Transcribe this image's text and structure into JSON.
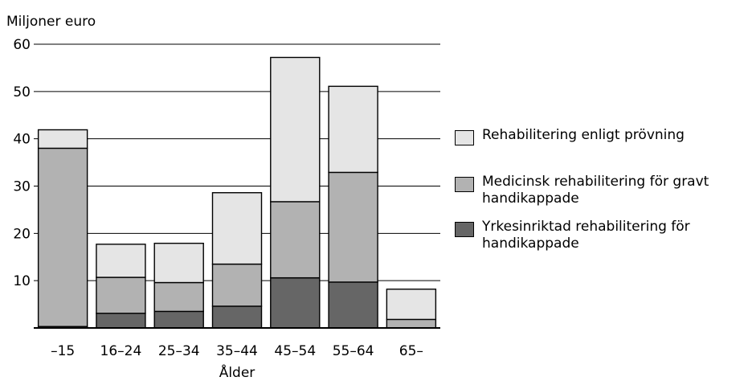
{
  "chart_data": {
    "type": "bar",
    "stacked": true,
    "ylabel": "Miljoner euro",
    "xlabel": "Ålder",
    "ylim": [
      0,
      60
    ],
    "yticks": [
      10,
      20,
      30,
      40,
      50,
      60
    ],
    "ytick_labels": [
      "10",
      "20",
      "30",
      "40",
      "50",
      "60"
    ],
    "categories": [
      "–15",
      "16–24",
      "25–34",
      "35–44",
      "45–54",
      "55–64",
      "65–"
    ],
    "grid": true,
    "legend_position": "right",
    "series": [
      {
        "name": "Yrkesinriktad rehabilitering för handikappade",
        "color": "#666666",
        "values": [
          0.3,
          3.1,
          3.5,
          4.6,
          10.6,
          9.7,
          0.0
        ]
      },
      {
        "name": "Medicinsk rehabilitering för gravt handikappade",
        "color": "#b2b2b2",
        "values": [
          37.7,
          7.6,
          6.1,
          8.9,
          16.1,
          23.2,
          1.8
        ]
      },
      {
        "name": "Rehabilitering enligt prövning",
        "color": "#e5e5e5",
        "values": [
          3.9,
          7.0,
          8.3,
          15.1,
          30.5,
          18.2,
          6.4
        ]
      }
    ]
  },
  "legend": {
    "items": [
      {
        "label": "Rehabilitering enligt prövning",
        "color": "#e5e5e5"
      },
      {
        "label": "Medicinsk rehabilitering för gravt handikappade",
        "color": "#b2b2b2"
      },
      {
        "label": "Yrkesinriktad rehabilitering för handikappade",
        "color": "#666666"
      }
    ]
  }
}
